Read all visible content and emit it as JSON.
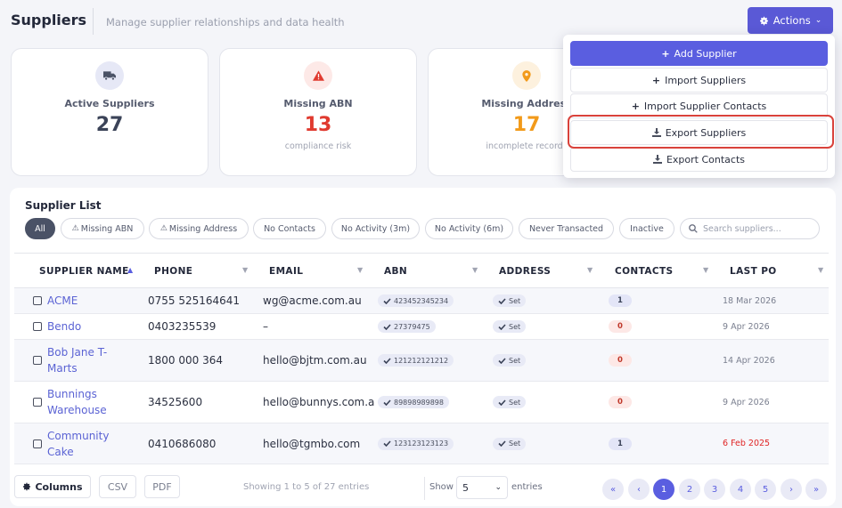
{
  "header": {
    "title": "Suppliers",
    "subtitle": "Manage supplier relationships and data health",
    "actions_label": "Actions"
  },
  "cards": [
    {
      "label": "Active Suppliers",
      "value": "27",
      "sub": "",
      "color": "#3b4358",
      "icon": "truck-icon"
    },
    {
      "label": "Missing ABN",
      "value": "13",
      "sub": "compliance risk",
      "color": "#e03a2f",
      "icon": "warning-icon"
    },
    {
      "label": "Missing Address",
      "value": "17",
      "sub": "incomplete records",
      "color": "#f29a1a",
      "icon": "map-pin-icon"
    }
  ],
  "actions_menu": {
    "items": [
      "Add Supplier",
      "Import Suppliers",
      "Import Supplier Contacts",
      "Export Suppliers",
      "Export Contacts"
    ]
  },
  "list": {
    "title": "Supplier List",
    "filters": [
      "All",
      "Missing ABN",
      "Missing Address",
      "No Contacts",
      "No Activity (3m)",
      "No Activity (6m)",
      "Never Transacted",
      "Inactive"
    ],
    "search_placeholder": "Search suppliers..."
  },
  "table": {
    "columns": [
      "SUPPLIER NAME",
      "PHONE",
      "EMAIL",
      "ABN",
      "ADDRESS",
      "CONTACTS",
      "LAST PO"
    ],
    "rows": [
      {
        "name": "ACME",
        "phone": "0755 525164641",
        "email": "wg@acme.com.au",
        "abn": "423452345234",
        "address": "Set",
        "contacts": "1",
        "last_po": "18 Mar 2026"
      },
      {
        "name": "Bendo",
        "phone": "0403235539",
        "email": "–",
        "abn": "27379475",
        "address": "Set",
        "contacts": "0",
        "last_po": "9 Apr 2026"
      },
      {
        "name": "Bob Jane T-Marts",
        "phone": "1800 000 364",
        "email": "hello@bjtm.com.au",
        "abn": "121212121212",
        "address": "Set",
        "contacts": "0",
        "last_po": "14 Apr 2026"
      },
      {
        "name": "Bunnings Warehouse",
        "phone": "34525600",
        "email": "hello@bunnys.com.a",
        "abn": "89898989898",
        "address": "Set",
        "contacts": "0",
        "last_po": "9 Apr 2026"
      },
      {
        "name": "Community Cake",
        "phone": "0410686080",
        "email": "hello@tgmbo.com",
        "abn": "123123123123",
        "address": "Set",
        "contacts": "1",
        "last_po": "6 Feb 2025"
      }
    ]
  },
  "footer": {
    "columns_label": "Columns",
    "csv_label": "CSV",
    "pdf_label": "PDF",
    "info": "Showing 1 to 5 of 27 entries",
    "show_label": "Show",
    "page_size": "5",
    "entries_label": "entries",
    "pages": [
      "1",
      "2",
      "3",
      "4",
      "5"
    ],
    "current_page": "1"
  },
  "colors": {
    "accent": "#5a5ee0",
    "danger": "#e03a2f",
    "warning": "#f29a1a",
    "highlight": "#d9423b"
  }
}
